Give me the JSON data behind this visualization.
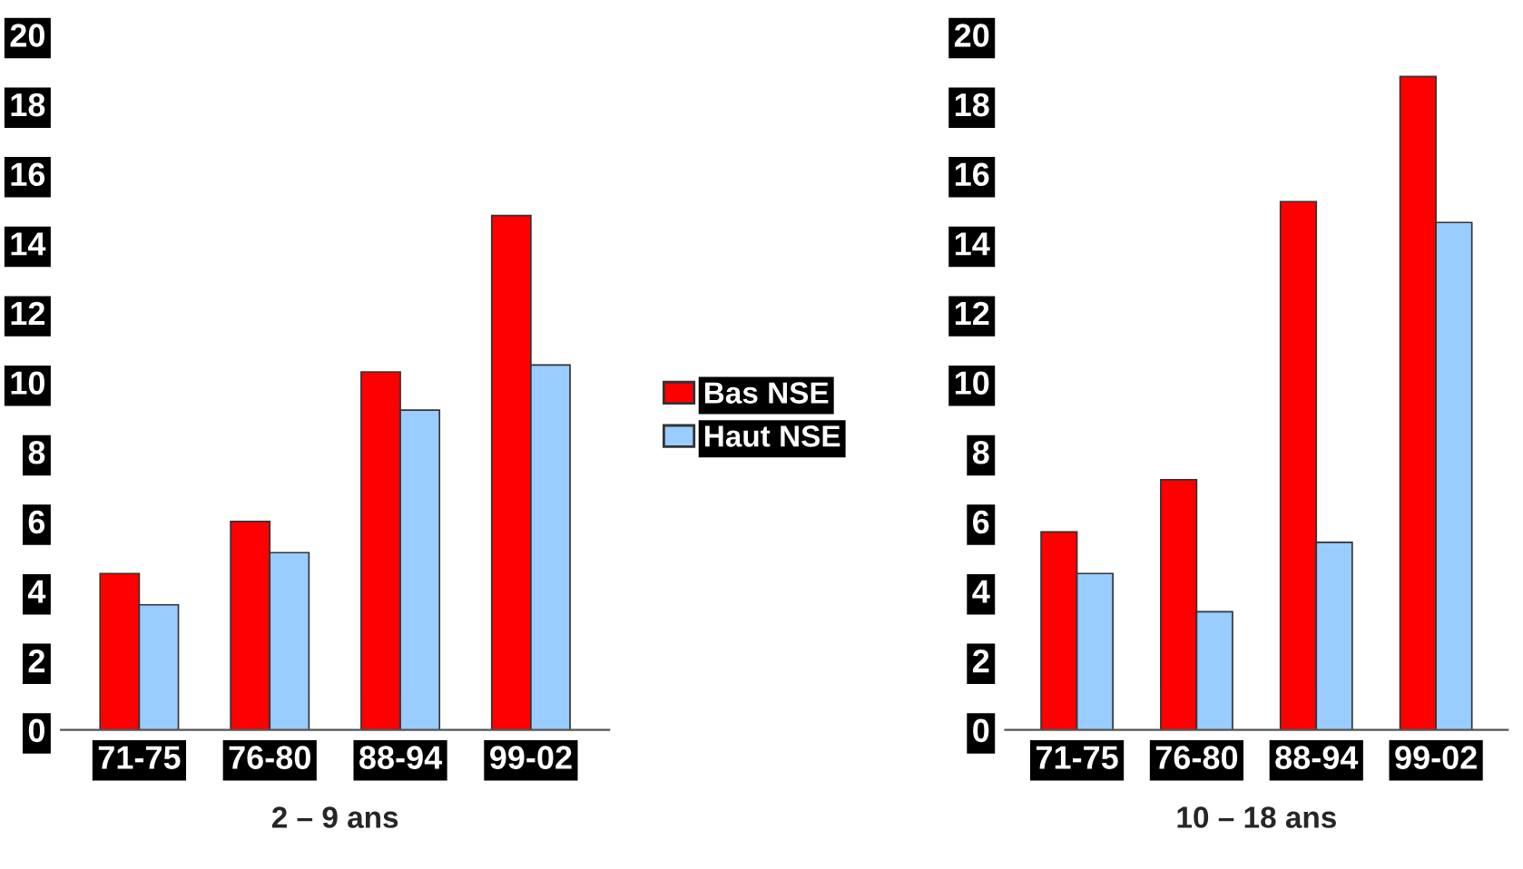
{
  "chart_data": [
    {
      "type": "bar",
      "xlabel": "2 – 9 ans",
      "categories": [
        "71-75",
        "76-80",
        "88-94",
        "99-02"
      ],
      "ylim": [
        0,
        20
      ],
      "yticks": [
        0,
        2,
        4,
        6,
        8,
        10,
        12,
        14,
        16,
        18,
        20
      ],
      "grid": false,
      "legend": "right",
      "series": [
        {
          "name": "Bas NSE",
          "color": "#ff0000",
          "values": [
            4.5,
            6.0,
            10.3,
            14.8
          ]
        },
        {
          "name": "Haut NSE",
          "color": "#99ccff",
          "values": [
            3.6,
            5.1,
            9.2,
            10.5
          ]
        }
      ]
    },
    {
      "type": "bar",
      "xlabel": "10 – 18 ans",
      "categories": [
        "71-75",
        "76-80",
        "88-94",
        "99-02"
      ],
      "ylim": [
        0,
        20
      ],
      "yticks": [
        0,
        2,
        4,
        6,
        8,
        10,
        12,
        14,
        16,
        18,
        20
      ],
      "grid": false,
      "series": [
        {
          "color": "#ff0000",
          "values": [
            5.7,
            7.2,
            15.2,
            18.8
          ]
        },
        {
          "color": "#99ccff",
          "values": [
            4.5,
            3.4,
            5.4,
            14.6
          ]
        }
      ]
    }
  ]
}
